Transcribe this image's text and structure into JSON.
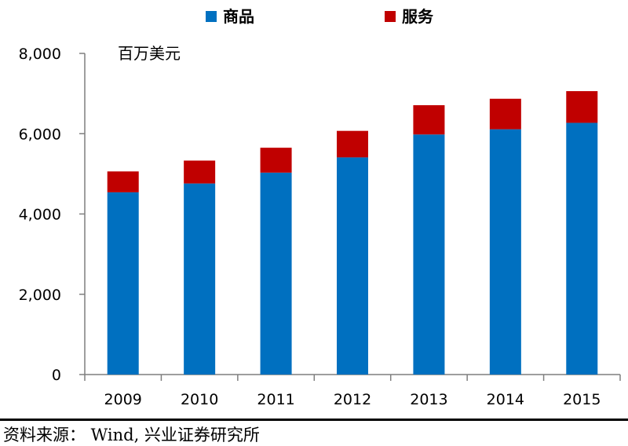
{
  "chart_data": {
    "type": "bar",
    "stacked": true,
    "unit_label": "百万美元",
    "categories": [
      "2009",
      "2010",
      "2011",
      "2012",
      "2013",
      "2014",
      "2015"
    ],
    "series": [
      {
        "name": "商品",
        "color": "#0070C0",
        "values": [
          4540,
          4760,
          5030,
          5410,
          5980,
          6110,
          6270
        ]
      },
      {
        "name": "服务",
        "color": "#C00000",
        "values": [
          520,
          570,
          620,
          660,
          730,
          760,
          790
        ]
      }
    ],
    "ylim": [
      0,
      8000
    ],
    "yticks": [
      0,
      2000,
      4000,
      6000,
      8000
    ],
    "ytick_labels": [
      "0",
      "2,000",
      "4,000",
      "6,000",
      "8,000"
    ],
    "legend_position": "top-center",
    "grid": false
  },
  "source_text": "资料来源： Wind, 兴业证券研究所"
}
